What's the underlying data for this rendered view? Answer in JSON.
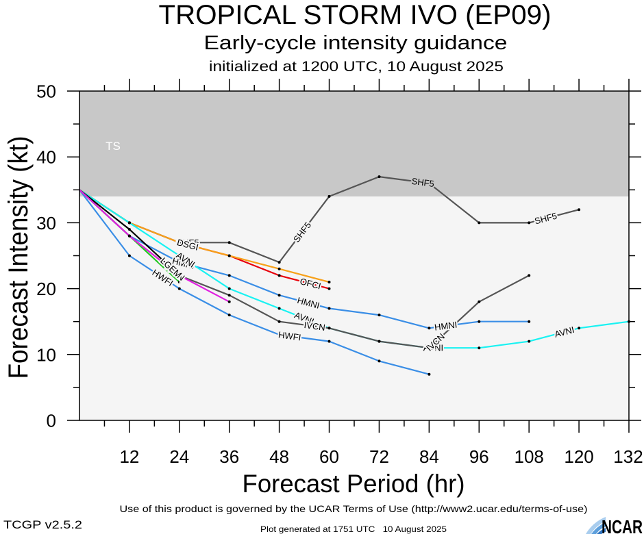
{
  "chart_data": {
    "type": "line",
    "title": "TROPICAL STORM IVO (EP09)",
    "subtitle": "Early-cycle intensity guidance",
    "subtitle_2": "initialized at 1200 UTC, 10 August 2025",
    "xlabel": "Forecast Period (hr)",
    "ylabel": "Forecast Intensity (kt)",
    "xlim": [
      0,
      132
    ],
    "ylim": [
      0,
      50
    ],
    "xticks": [
      12,
      24,
      36,
      48,
      60,
      72,
      84,
      96,
      108,
      120,
      132
    ],
    "yticks": [
      0,
      10,
      20,
      30,
      40,
      50
    ],
    "grid": false,
    "background_color": "#f5f5f5",
    "bands": [
      {
        "label": "TS",
        "from": 34,
        "to": 50,
        "color": "#c8c8c8"
      }
    ],
    "series": [
      {
        "name": "OFCI",
        "color": "#e8000b",
        "points": [
          [
            0,
            35
          ],
          [
            12,
            30
          ],
          [
            24,
            27
          ],
          [
            36,
            25
          ],
          [
            48,
            22
          ],
          [
            60,
            20
          ]
        ]
      },
      {
        "name": "SHF5",
        "color": "#555555",
        "points": [
          [
            0,
            35
          ],
          [
            12,
            30
          ],
          [
            24,
            27
          ],
          [
            36,
            27
          ],
          [
            48,
            24
          ],
          [
            60,
            34
          ],
          [
            72,
            37
          ],
          [
            84,
            36
          ],
          [
            96,
            30
          ],
          [
            108,
            30
          ],
          [
            120,
            32
          ]
        ]
      },
      {
        "name": "DSGI",
        "color": "#f7a11a",
        "points": [
          [
            0,
            35
          ],
          [
            12,
            30
          ],
          [
            24,
            27
          ],
          [
            36,
            25
          ],
          [
            48,
            23
          ],
          [
            60,
            21
          ]
        ]
      },
      {
        "name": "HMNI",
        "color": "#3a8ee6",
        "points": [
          [
            0,
            35
          ],
          [
            12,
            28
          ],
          [
            24,
            24
          ],
          [
            36,
            22
          ],
          [
            48,
            19
          ],
          [
            60,
            17
          ],
          [
            72,
            16
          ],
          [
            84,
            14
          ],
          [
            96,
            15
          ],
          [
            108,
            15
          ]
        ]
      },
      {
        "name": "AVNI",
        "color": "#19f2f2",
        "points": [
          [
            0,
            35
          ],
          [
            12,
            30
          ],
          [
            24,
            25
          ],
          [
            36,
            20
          ],
          [
            48,
            17
          ],
          [
            60,
            14
          ],
          [
            72,
            12
          ],
          [
            84,
            11
          ],
          [
            96,
            11
          ],
          [
            108,
            12
          ],
          [
            120,
            14
          ],
          [
            132,
            15
          ]
        ]
      },
      {
        "name": "IVCN",
        "color": "#555555",
        "points": [
          [
            0,
            35
          ],
          [
            12,
            28
          ],
          [
            24,
            22
          ],
          [
            36,
            19
          ],
          [
            48,
            15
          ],
          [
            60,
            14
          ],
          [
            72,
            12
          ],
          [
            84,
            11
          ],
          [
            96,
            18
          ],
          [
            108,
            22
          ]
        ]
      },
      {
        "name": "HWFI",
        "color": "#3a8ee6",
        "points": [
          [
            0,
            35
          ],
          [
            12,
            25
          ],
          [
            24,
            20
          ],
          [
            36,
            16
          ],
          [
            48,
            13
          ],
          [
            60,
            12
          ],
          [
            72,
            9
          ],
          [
            84,
            7
          ]
        ]
      },
      {
        "name": "LGEM",
        "color": "#000000",
        "points": [
          [
            0,
            35
          ],
          [
            12,
            29
          ],
          [
            24,
            22
          ]
        ]
      },
      {
        "color": "#22c822",
        "points": [
          [
            0,
            35
          ],
          [
            12,
            28
          ],
          [
            24,
            21
          ]
        ]
      },
      {
        "color": "#e020e0",
        "points": [
          [
            0,
            35
          ],
          [
            12,
            28
          ],
          [
            24,
            22
          ],
          [
            36,
            18
          ]
        ]
      }
    ]
  },
  "footer": {
    "terms": "Use of this product is governed by the UCAR Terms of Use (http://www2.ucar.edu/terms-of-use)",
    "version": "TCGP v2.5.2",
    "generated": "Plot generated at 1751 UTC   10 August 2025"
  },
  "logo": {
    "text": "NCAR"
  }
}
